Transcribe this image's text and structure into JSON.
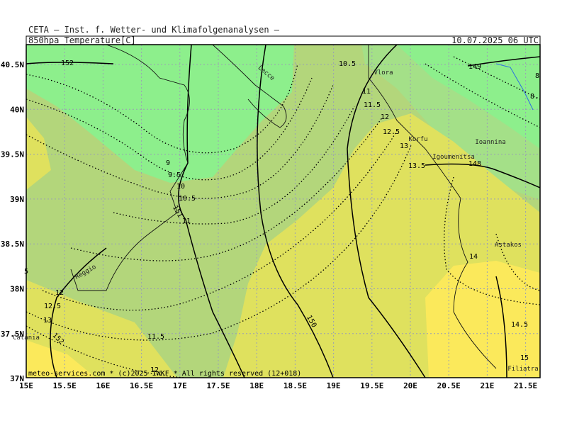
{
  "header": {
    "title": "CETA – Inst. f. Wetter- und Klimafolgenanalysen –",
    "field": "850hpa_Temperature[C]",
    "valid": "10.07.2025 06 UTC"
  },
  "axes": {
    "lon_labels": [
      "15E",
      "15.5E",
      "16E",
      "16.5E",
      "17E",
      "17.5E",
      "18E",
      "18.5E",
      "19E",
      "19.5E",
      "20E",
      "20.5E",
      "21E",
      "21.5E"
    ],
    "lat_labels": [
      "40.5N",
      "40N",
      "39.5N",
      "39N",
      "38.5N",
      "38N",
      "37.5N",
      "37N"
    ]
  },
  "contour_labels": [
    "152",
    "10.5",
    "149",
    "8",
    "8.",
    "11",
    "11.5",
    "12",
    "12.5",
    "13",
    "13.5",
    "148",
    "9",
    "9.5",
    "10",
    "10.5",
    "151",
    "11",
    "14",
    "12",
    "12.5",
    "13",
    "152",
    "11.5",
    "12",
    "150",
    "14.5",
    "15",
    "5"
  ],
  "places": [
    "Lecce",
    "Vlora",
    "Korfu",
    "Igoumenitsa",
    "Ioannina",
    "Astakos",
    "Reggio",
    "Catania",
    "Filiatra"
  ],
  "footer": "meteo-services.com * (c)2025 IWKF * All rights reserved (12+018)"
}
